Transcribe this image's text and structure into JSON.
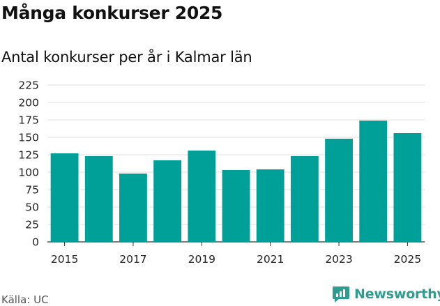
{
  "header": {
    "title": "Många konkurser 2025",
    "subtitle": "Antal konkurser per år i Kalmar län"
  },
  "footer": {
    "source": "Källa: UC",
    "brand": "Newsworthy",
    "brand_icon": "newsworthy-logo-icon",
    "brand_color": "#2e9d8f"
  },
  "chart_data": {
    "type": "bar",
    "categories": [
      "2015",
      "2016",
      "2017",
      "2018",
      "2019",
      "2020",
      "2021",
      "2022",
      "2023",
      "2024",
      "2025"
    ],
    "values": [
      127,
      123,
      98,
      117,
      131,
      103,
      104,
      123,
      148,
      174,
      156
    ],
    "x_tick_labels": [
      "2015",
      "2017",
      "2019",
      "2021",
      "2023",
      "2025"
    ],
    "y_ticks": [
      0,
      25,
      50,
      75,
      100,
      125,
      150,
      175,
      200,
      225
    ],
    "ylim": [
      0,
      225
    ],
    "xlabel": "",
    "ylabel": "",
    "grid": true,
    "bar_color": "#00a099"
  }
}
